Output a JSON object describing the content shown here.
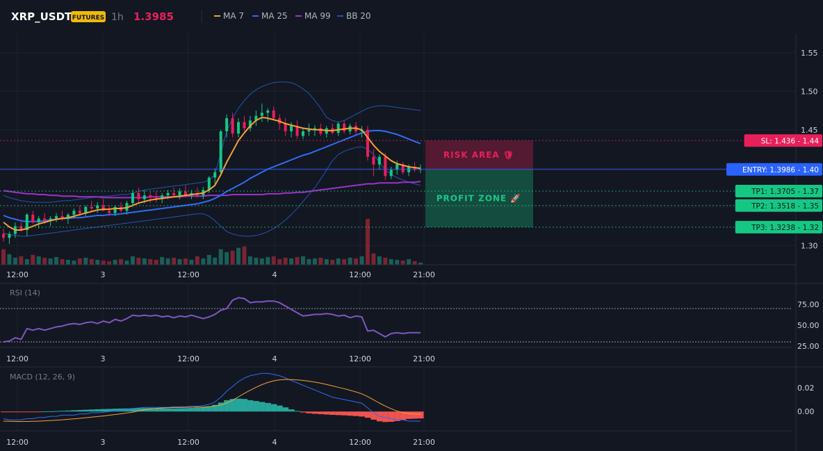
{
  "header": {
    "symbol": "XRP_USDT",
    "badge": "FUTURES",
    "interval": "1h",
    "price": "1.3985",
    "legend": [
      {
        "label": "MA 7",
        "color": "#f7a233"
      },
      {
        "label": "MA 25",
        "color": "#2f6df6"
      },
      {
        "label": "MA 99",
        "color": "#9c33c7"
      },
      {
        "label": "BB 20",
        "color": "#2553b0"
      }
    ]
  },
  "colors": {
    "up": "#16c784",
    "down": "#e8205a",
    "volume_up": "#1b5e58",
    "volume_down": "#7a2532",
    "background": "#131722",
    "grid": "#1e222d",
    "rsi": "#7e57c2",
    "macd": "#2f6df6",
    "signal": "#f7a233",
    "hist_up": "#26a69a",
    "hist_down": "#ef5350"
  },
  "x_axis": {
    "ticks": [
      "12:00",
      "3",
      "12:00",
      "4",
      "12:00",
      "21:00"
    ]
  },
  "chart_data": [
    {
      "type": "candlestick",
      "title": "XRP_USDT",
      "ylim": [
        1.275,
        1.575
      ],
      "y_ticks": [
        "1.55",
        "1.50",
        "1.45",
        "1.40",
        "1.35",
        "1.30"
      ],
      "candles": [
        [
          1.315,
          1.322,
          1.305,
          1.31
        ],
        [
          1.31,
          1.318,
          1.302,
          1.315
        ],
        [
          1.315,
          1.33,
          1.31,
          1.325
        ],
        [
          1.325,
          1.33,
          1.318,
          1.32
        ],
        [
          1.32,
          1.342,
          1.312,
          1.34
        ],
        [
          1.34,
          1.345,
          1.328,
          1.33
        ],
        [
          1.33,
          1.338,
          1.322,
          1.335
        ],
        [
          1.335,
          1.342,
          1.328,
          1.332
        ],
        [
          1.332,
          1.338,
          1.325,
          1.335
        ],
        [
          1.335,
          1.342,
          1.33,
          1.338
        ],
        [
          1.338,
          1.345,
          1.332,
          1.335
        ],
        [
          1.335,
          1.342,
          1.328,
          1.34
        ],
        [
          1.34,
          1.348,
          1.335,
          1.345
        ],
        [
          1.345,
          1.352,
          1.338,
          1.342
        ],
        [
          1.342,
          1.352,
          1.338,
          1.35
        ],
        [
          1.35,
          1.358,
          1.345,
          1.348
        ],
        [
          1.348,
          1.356,
          1.342,
          1.352
        ],
        [
          1.352,
          1.36,
          1.346,
          1.345
        ],
        [
          1.345,
          1.352,
          1.338,
          1.342
        ],
        [
          1.342,
          1.352,
          1.338,
          1.35
        ],
        [
          1.35,
          1.356,
          1.343,
          1.345
        ],
        [
          1.345,
          1.358,
          1.34,
          1.355
        ],
        [
          1.355,
          1.372,
          1.35,
          1.368
        ],
        [
          1.368,
          1.375,
          1.355,
          1.36
        ],
        [
          1.36,
          1.372,
          1.355,
          1.365
        ],
        [
          1.365,
          1.37,
          1.355,
          1.362
        ],
        [
          1.362,
          1.37,
          1.356,
          1.36
        ],
        [
          1.36,
          1.368,
          1.355,
          1.365
        ],
        [
          1.365,
          1.372,
          1.36,
          1.368
        ],
        [
          1.368,
          1.375,
          1.362,
          1.365
        ],
        [
          1.365,
          1.374,
          1.36,
          1.37
        ],
        [
          1.37,
          1.378,
          1.362,
          1.365
        ],
        [
          1.365,
          1.372,
          1.36,
          1.368
        ],
        [
          1.368,
          1.375,
          1.362,
          1.365
        ],
        [
          1.365,
          1.376,
          1.36,
          1.372
        ],
        [
          1.372,
          1.39,
          1.368,
          1.388
        ],
        [
          1.388,
          1.4,
          1.38,
          1.395
        ],
        [
          1.395,
          1.45,
          1.39,
          1.448
        ],
        [
          1.448,
          1.47,
          1.44,
          1.465
        ],
        [
          1.465,
          1.472,
          1.44,
          1.445
        ],
        [
          1.445,
          1.465,
          1.44,
          1.46
        ],
        [
          1.46,
          1.468,
          1.448,
          1.452
        ],
        [
          1.452,
          1.468,
          1.448,
          1.462
        ],
        [
          1.462,
          1.475,
          1.455,
          1.468
        ],
        [
          1.468,
          1.484,
          1.46,
          1.472
        ],
        [
          1.472,
          1.478,
          1.46,
          1.475
        ],
        [
          1.475,
          1.48,
          1.462,
          1.465
        ],
        [
          1.465,
          1.47,
          1.45,
          1.458
        ],
        [
          1.458,
          1.465,
          1.442,
          1.448
        ],
        [
          1.448,
          1.46,
          1.44,
          1.455
        ],
        [
          1.455,
          1.462,
          1.438,
          1.442
        ],
        [
          1.442,
          1.452,
          1.438,
          1.448
        ],
        [
          1.448,
          1.458,
          1.442,
          1.45
        ],
        [
          1.45,
          1.456,
          1.442,
          1.452
        ],
        [
          1.452,
          1.458,
          1.442,
          1.445
        ],
        [
          1.445,
          1.455,
          1.44,
          1.452
        ],
        [
          1.452,
          1.458,
          1.444,
          1.446
        ],
        [
          1.446,
          1.46,
          1.442,
          1.458
        ],
        [
          1.458,
          1.462,
          1.445,
          1.448
        ],
        [
          1.448,
          1.458,
          1.444,
          1.455
        ],
        [
          1.455,
          1.46,
          1.444,
          1.448
        ],
        [
          1.448,
          1.455,
          1.44,
          1.45
        ],
        [
          1.45,
          1.455,
          1.41,
          1.415
        ],
        [
          1.415,
          1.425,
          1.39,
          1.405
        ],
        [
          1.405,
          1.418,
          1.398,
          1.415
        ],
        [
          1.415,
          1.42,
          1.385,
          1.39
        ],
        [
          1.39,
          1.402,
          1.386,
          1.398
        ],
        [
          1.398,
          1.41,
          1.392,
          1.405
        ],
        [
          1.405,
          1.408,
          1.392,
          1.395
        ],
        [
          1.395,
          1.405,
          1.39,
          1.402
        ],
        [
          1.402,
          1.408,
          1.395,
          1.398
        ],
        [
          1.398,
          1.405,
          1.394,
          1.399
        ]
      ],
      "volumes": [
        22,
        15,
        10,
        12,
        8,
        14,
        12,
        10,
        9,
        11,
        8,
        7,
        6,
        9,
        10,
        8,
        7,
        6,
        5,
        7,
        8,
        6,
        12,
        10,
        9,
        8,
        7,
        11,
        9,
        10,
        8,
        9,
        7,
        12,
        9,
        14,
        10,
        22,
        18,
        20,
        24,
        26,
        12,
        10,
        9,
        11,
        12,
        8,
        10,
        9,
        11,
        12,
        8,
        9,
        10,
        8,
        7,
        9,
        8,
        10,
        9,
        12,
        65,
        16,
        12,
        10,
        8,
        7,
        6,
        8,
        5,
        3
      ],
      "ma7": [
        1.33,
        1.324,
        1.32,
        1.32,
        1.322,
        1.325,
        1.328,
        1.33,
        1.332,
        1.334,
        1.335,
        1.336,
        1.338,
        1.34,
        1.342,
        1.344,
        1.346,
        1.347,
        1.347,
        1.348,
        1.348,
        1.349,
        1.352,
        1.355,
        1.357,
        1.359,
        1.36,
        1.361,
        1.362,
        1.363,
        1.364,
        1.365,
        1.366,
        1.367,
        1.368,
        1.372,
        1.378,
        1.392,
        1.408,
        1.422,
        1.436,
        1.446,
        1.455,
        1.462,
        1.466,
        1.465,
        1.463,
        1.461,
        1.458,
        1.456,
        1.454,
        1.452,
        1.451,
        1.45,
        1.45,
        1.449,
        1.449,
        1.45,
        1.451,
        1.452,
        1.452,
        1.45,
        1.44,
        1.43,
        1.422,
        1.416,
        1.41,
        1.406,
        1.404,
        1.402,
        1.401,
        1.4
      ],
      "ma25": [
        1.339,
        1.336,
        1.334,
        1.332,
        1.331,
        1.331,
        1.331,
        1.332,
        1.333,
        1.334,
        1.335,
        1.335,
        1.336,
        1.336,
        1.337,
        1.338,
        1.339,
        1.339,
        1.34,
        1.34,
        1.341,
        1.342,
        1.343,
        1.344,
        1.345,
        1.346,
        1.347,
        1.348,
        1.349,
        1.35,
        1.351,
        1.352,
        1.353,
        1.354,
        1.356,
        1.358,
        1.361,
        1.365,
        1.37,
        1.374,
        1.378,
        1.382,
        1.387,
        1.391,
        1.395,
        1.399,
        1.402,
        1.405,
        1.408,
        1.411,
        1.414,
        1.417,
        1.419,
        1.422,
        1.425,
        1.428,
        1.431,
        1.434,
        1.437,
        1.44,
        1.443,
        1.446,
        1.448,
        1.449,
        1.449,
        1.448,
        1.446,
        1.444,
        1.441,
        1.438,
        1.435,
        1.432
      ],
      "ma99": [
        1.371,
        1.37,
        1.369,
        1.368,
        1.367,
        1.367,
        1.366,
        1.366,
        1.365,
        1.365,
        1.364,
        1.364,
        1.364,
        1.363,
        1.363,
        1.363,
        1.363,
        1.362,
        1.362,
        1.362,
        1.362,
        1.362,
        1.362,
        1.362,
        1.362,
        1.363,
        1.363,
        1.363,
        1.363,
        1.363,
        1.363,
        1.364,
        1.364,
        1.364,
        1.364,
        1.365,
        1.365,
        1.365,
        1.365,
        1.366,
        1.366,
        1.366,
        1.366,
        1.366,
        1.366,
        1.367,
        1.367,
        1.367,
        1.368,
        1.368,
        1.369,
        1.369,
        1.37,
        1.371,
        1.372,
        1.373,
        1.374,
        1.375,
        1.376,
        1.377,
        1.378,
        1.379,
        1.38,
        1.38,
        1.381,
        1.381,
        1.381,
        1.381,
        1.382,
        1.382,
        1.382,
        1.383
      ],
      "bb_upper": [
        1.365,
        1.362,
        1.36,
        1.358,
        1.357,
        1.356,
        1.356,
        1.356,
        1.356,
        1.357,
        1.358,
        1.358,
        1.359,
        1.36,
        1.361,
        1.362,
        1.363,
        1.364,
        1.364,
        1.365,
        1.366,
        1.366,
        1.368,
        1.37,
        1.372,
        1.373,
        1.374,
        1.375,
        1.376,
        1.377,
        1.378,
        1.379,
        1.38,
        1.381,
        1.382,
        1.385,
        1.392,
        1.42,
        1.448,
        1.465,
        1.478,
        1.488,
        1.496,
        1.502,
        1.506,
        1.509,
        1.511,
        1.512,
        1.512,
        1.511,
        1.508,
        1.503,
        1.497,
        1.488,
        1.478,
        1.466,
        1.462,
        1.46,
        1.462,
        1.466,
        1.47,
        1.474,
        1.478,
        1.48,
        1.481,
        1.481,
        1.48,
        1.479,
        1.478,
        1.477,
        1.476,
        1.475
      ],
      "bb_lower": [
        1.316,
        1.314,
        1.313,
        1.312,
        1.312,
        1.313,
        1.314,
        1.315,
        1.316,
        1.317,
        1.318,
        1.319,
        1.32,
        1.321,
        1.322,
        1.323,
        1.324,
        1.325,
        1.326,
        1.327,
        1.328,
        1.329,
        1.33,
        1.331,
        1.332,
        1.333,
        1.334,
        1.335,
        1.336,
        1.337,
        1.338,
        1.339,
        1.34,
        1.341,
        1.341,
        1.338,
        1.332,
        1.325,
        1.318,
        1.315,
        1.313,
        1.312,
        1.312,
        1.313,
        1.315,
        1.318,
        1.322,
        1.327,
        1.333,
        1.34,
        1.348,
        1.357,
        1.366,
        1.375,
        1.386,
        1.398,
        1.41,
        1.418,
        1.422,
        1.425,
        1.427,
        1.428,
        1.425,
        1.418,
        1.408,
        1.398,
        1.392,
        1.388,
        1.385,
        1.382,
        1.38,
        1.378
      ],
      "levels": [
        {
          "label": "SL: 1.436 - 1.44",
          "value": 1.436,
          "color": "#e8205a",
          "style": "dotted"
        },
        {
          "label": "ENTRY: 1.3986 - 1.40",
          "value": 1.3986,
          "color": "#2962ff",
          "style": "solid"
        },
        {
          "label": "TP1: 1.3705 - 1.37",
          "value": 1.3705,
          "color": "#16c784",
          "style": "dotted"
        },
        {
          "label": "TP2: 1.3518 - 1.35",
          "value": 1.3518,
          "color": "#16c784",
          "style": "dotted"
        },
        {
          "label": "TP3: 1.3238 - 1.32",
          "value": 1.3238,
          "color": "#16c784",
          "style": "dotted"
        }
      ],
      "zones": [
        {
          "label": "RISK AREA 🛡",
          "from": 1.436,
          "to": 1.3986,
          "color": "#e8205a"
        },
        {
          "label": "PROFIT ZONE 🚀",
          "from": 1.3986,
          "to": 1.3238,
          "color": "#16c784"
        }
      ]
    },
    {
      "type": "line",
      "title": "RSI (14)",
      "ylim": [
        25,
        90
      ],
      "y_ticks": [
        "75.00",
        "50.00",
        "25.00"
      ],
      "reference_lines": [
        70,
        30
      ],
      "values": [
        30,
        31,
        35,
        33,
        46,
        44,
        46,
        44,
        46,
        48,
        49,
        51,
        52,
        51,
        53,
        54,
        52,
        55,
        53,
        57,
        55,
        58,
        62,
        61,
        62,
        61,
        62,
        60,
        61,
        59,
        61,
        60,
        62,
        60,
        58,
        60,
        63,
        68,
        70,
        80,
        83,
        82,
        77,
        78,
        78,
        79,
        79,
        77,
        73,
        69,
        65,
        61,
        62,
        63,
        63,
        64,
        63,
        61,
        62,
        59,
        61,
        60,
        43,
        44,
        40,
        36,
        40,
        41,
        40,
        41,
        41,
        41
      ]
    },
    {
      "type": "line",
      "title": "MACD (12, 26, 9)",
      "ylim": [
        -0.015,
        0.035
      ],
      "y_ticks": [
        "0.02",
        "0.00"
      ],
      "macd": [
        -0.006,
        -0.007,
        -0.007,
        -0.007,
        -0.006,
        -0.006,
        -0.005,
        -0.005,
        -0.004,
        -0.004,
        -0.003,
        -0.003,
        -0.003,
        -0.002,
        -0.002,
        -0.001,
        -0.001,
        -0.0005,
        0.0,
        0.0005,
        0.001,
        0.0015,
        0.0025,
        0.003,
        0.0035,
        0.0035,
        0.0035,
        0.0035,
        0.0035,
        0.004,
        0.004,
        0.004,
        0.0045,
        0.0045,
        0.005,
        0.006,
        0.008,
        0.012,
        0.017,
        0.021,
        0.025,
        0.028,
        0.03,
        0.031,
        0.032,
        0.032,
        0.031,
        0.03,
        0.028,
        0.026,
        0.024,
        0.022,
        0.02,
        0.018,
        0.016,
        0.014,
        0.012,
        0.011,
        0.01,
        0.009,
        0.008,
        0.007,
        0.003,
        -0.001,
        -0.004,
        -0.005,
        -0.006,
        -0.007,
        -0.007,
        -0.008,
        -0.008,
        -0.008
      ],
      "signal": [
        -0.008,
        -0.0082,
        -0.0083,
        -0.0084,
        -0.0083,
        -0.0082,
        -0.008,
        -0.0078,
        -0.0075,
        -0.0072,
        -0.0069,
        -0.0065,
        -0.0061,
        -0.0057,
        -0.0052,
        -0.0047,
        -0.0042,
        -0.0037,
        -0.0031,
        -0.0025,
        -0.0019,
        -0.0012,
        -0.0005,
        0.0005,
        0.0015,
        0.0022,
        0.0027,
        0.003,
        0.0032,
        0.0033,
        0.0034,
        0.0035,
        0.0036,
        0.0037,
        0.0038,
        0.0041,
        0.0046,
        0.0055,
        0.0071,
        0.0095,
        0.0123,
        0.0152,
        0.0178,
        0.0203,
        0.0225,
        0.0243,
        0.0257,
        0.0265,
        0.0268,
        0.0268,
        0.0265,
        0.026,
        0.0254,
        0.0246,
        0.0237,
        0.0226,
        0.0215,
        0.0203,
        0.0191,
        0.0178,
        0.0164,
        0.0148,
        0.0125,
        0.0098,
        0.0071,
        0.0046,
        0.0023,
        0.0004,
        -0.0009,
        -0.0017,
        -0.0021,
        -0.0023
      ],
      "histogram": [
        -0.0002,
        -0.0003,
        -0.0004,
        -0.0004,
        -0.0003,
        -0.0002,
        -0.0001,
        0.0001,
        0.0002,
        0.0004,
        0.0006,
        0.0008,
        0.0011,
        0.0013,
        0.0015,
        0.0017,
        0.0019,
        0.0021,
        0.0022,
        0.0024,
        0.0025,
        0.0026,
        0.0028,
        0.0029,
        0.0029,
        0.0029,
        0.0028,
        0.0027,
        0.0026,
        0.0026,
        0.0027,
        0.0028,
        0.003,
        0.0033,
        0.0037,
        0.0044,
        0.0056,
        0.0075,
        0.0095,
        0.0105,
        0.0108,
        0.0105,
        0.0095,
        0.0088,
        0.008,
        0.0072,
        0.0062,
        0.005,
        0.0035,
        0.0018,
        0.0005,
        -0.0008,
        -0.0015,
        -0.0019,
        -0.0022,
        -0.0025,
        -0.0028,
        -0.003,
        -0.0032,
        -0.0035,
        -0.0038,
        -0.0042,
        -0.0052,
        -0.0068,
        -0.0082,
        -0.0088,
        -0.0086,
        -0.008,
        -0.007,
        -0.0062,
        -0.006,
        -0.0058
      ]
    }
  ]
}
